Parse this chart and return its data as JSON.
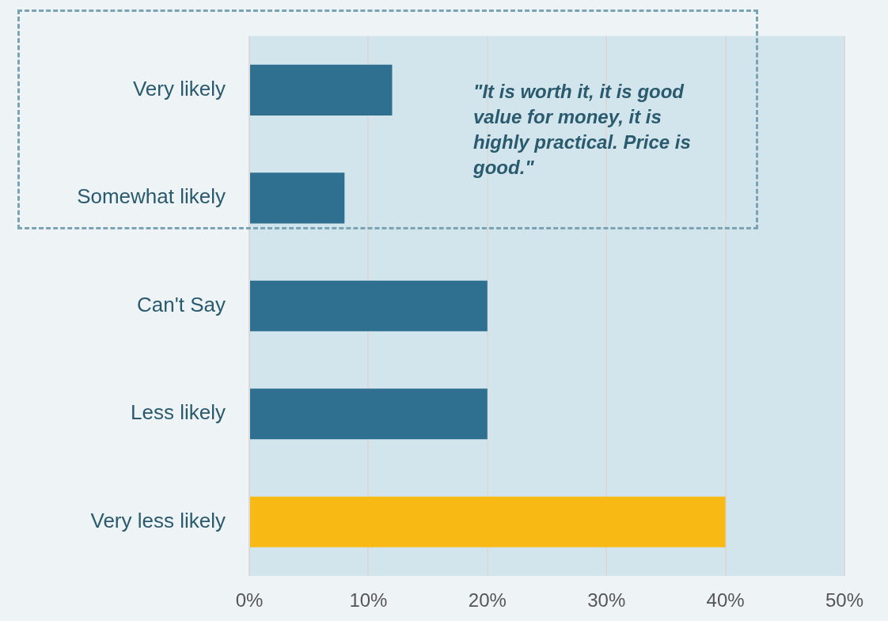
{
  "chart_data": {
    "type": "bar",
    "orientation": "horizontal",
    "categories": [
      "Very likely",
      "Somewhat likely",
      "Can't Say",
      "Less likely",
      "Very less likely"
    ],
    "values": [
      12,
      8,
      20,
      20,
      40
    ],
    "colors": [
      "#2f7090",
      "#2f7090",
      "#2f7090",
      "#2f7090",
      "#f9b914"
    ],
    "xlim": [
      0,
      50
    ],
    "xticks": [
      {
        "value": 0,
        "label": "0%"
      },
      {
        "value": 10,
        "label": "10%"
      },
      {
        "value": 20,
        "label": "20%"
      },
      {
        "value": 30,
        "label": "30%"
      },
      {
        "value": 40,
        "label": "40%"
      },
      {
        "value": 50,
        "label": "50%"
      }
    ],
    "grid": "x",
    "legend": false,
    "annotations": [
      "\"It is worth it, it is good value for money, it is highly practical. Price is good.\""
    ]
  }
}
